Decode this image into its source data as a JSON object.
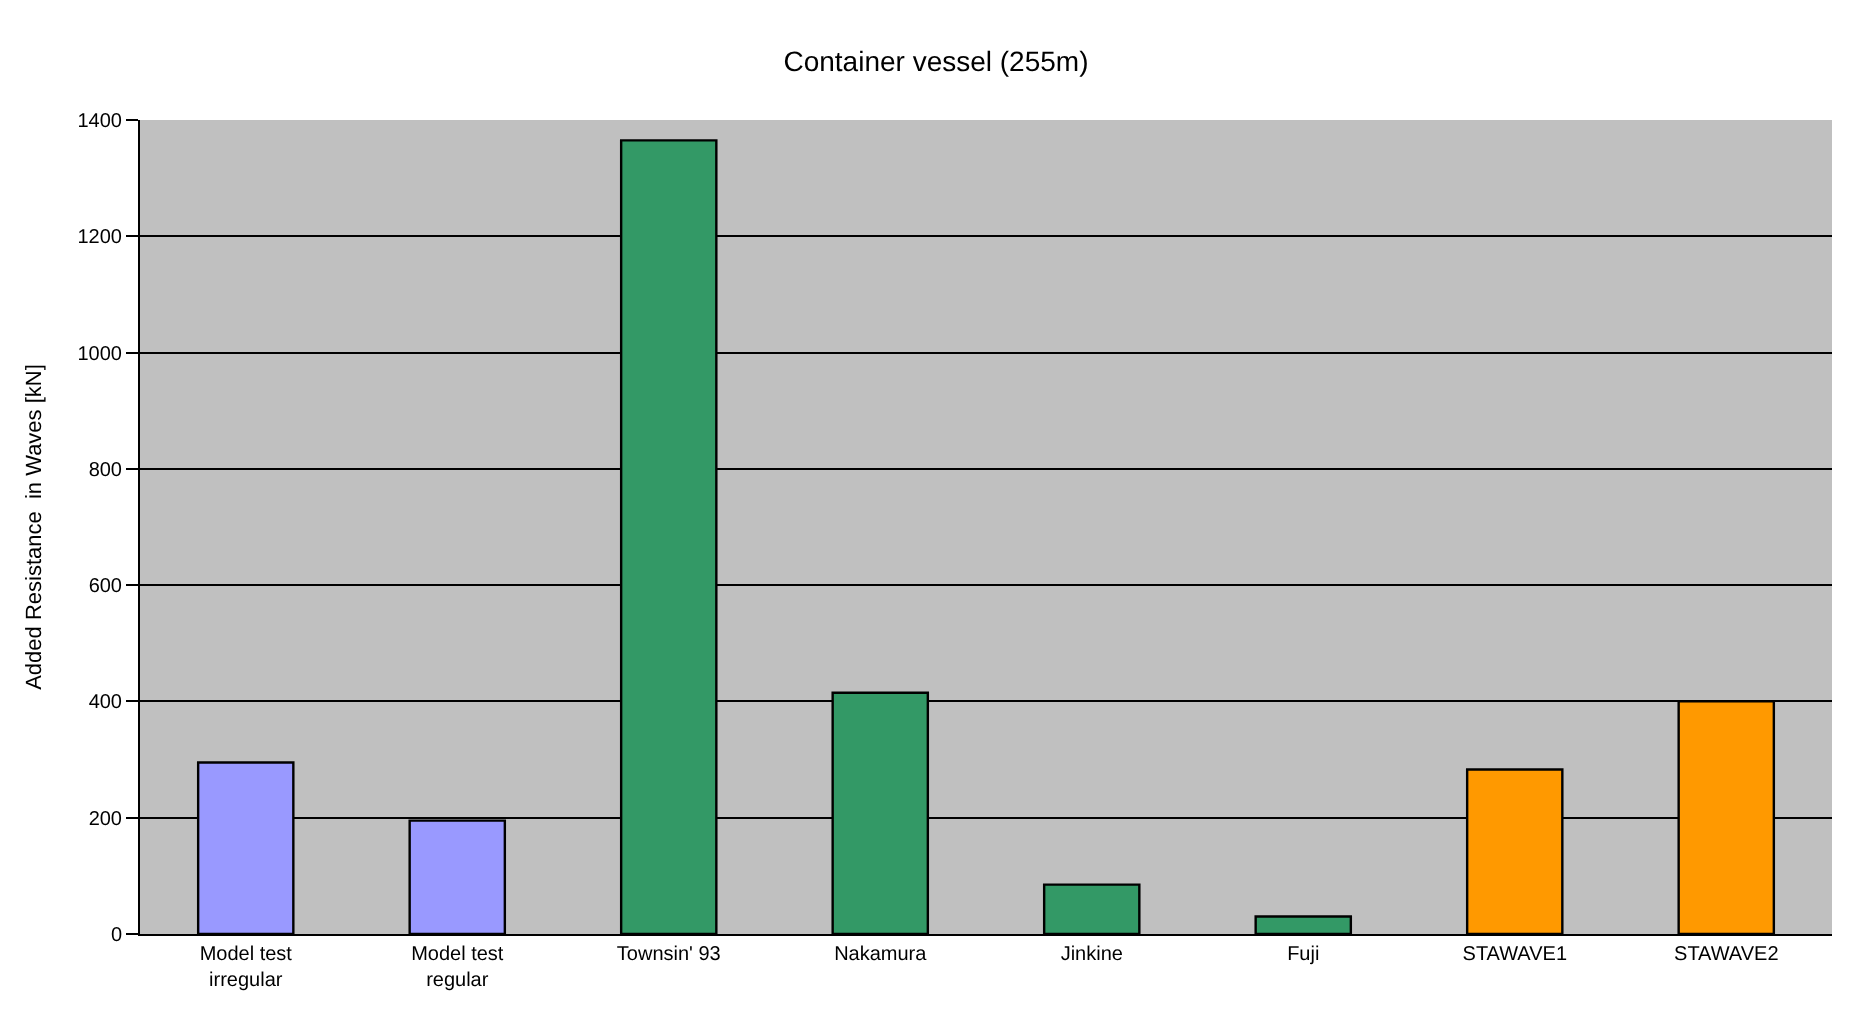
{
  "chart_data": {
    "type": "bar",
    "title": "Container vessel (255m)",
    "ylabel": "Added Resistance  in Waves [kN]",
    "categories": [
      "Model test\nirregular",
      "Model test\nregular",
      "Townsin' 93",
      "Nakamura",
      "Jinkine",
      "Fuji",
      "STAWAVE1",
      "STAWAVE2"
    ],
    "values": [
      295,
      195,
      1365,
      415,
      85,
      30,
      283,
      400
    ],
    "colors": [
      "#9999ff",
      "#9999ff",
      "#339966",
      "#339966",
      "#339966",
      "#339966",
      "#ff9900",
      "#ff9900"
    ],
    "ylim": [
      0,
      1400
    ],
    "yticks": [
      0,
      200,
      400,
      600,
      800,
      1000,
      1200,
      1400
    ],
    "grid": "y"
  }
}
